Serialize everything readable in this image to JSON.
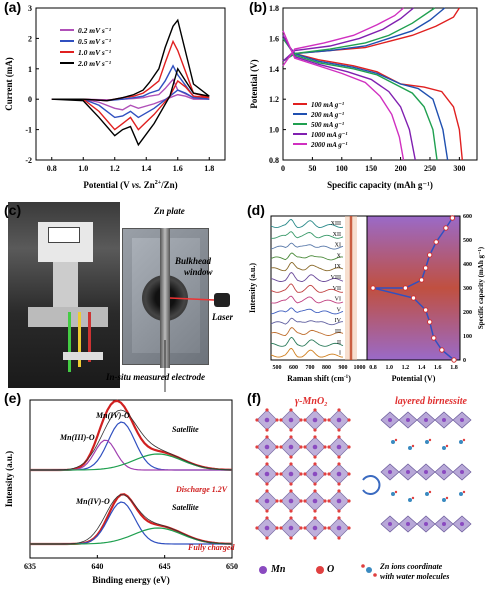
{
  "panel_labels": {
    "a": "(a)",
    "b": "(b)",
    "c": "(c)",
    "d": "(d)",
    "e": "(e)",
    "f": "(f)"
  },
  "panel_a": {
    "xlabel_main": "Potential (V ",
    "xlabel_vs": "vs.",
    "xlabel_rest": " Zn",
    "xlabel_sup": "2+",
    "xlabel_end": "/Zn)",
    "ylabel": "Current (mA)",
    "legend": [
      "0.2 mV s⁻¹",
      "0.5 mV s⁻¹",
      "1.0 mV s⁻¹",
      "2.0 mV s⁻¹"
    ],
    "colors": [
      "#b050b8",
      "#3050c0",
      "#e02020",
      "#000000"
    ]
  },
  "panel_b": {
    "xlabel": "Specific capacity (mAh g⁻¹)",
    "ylabel": "Potential (V)",
    "legend": [
      "100 mA g⁻¹",
      "200 mA g⁻¹",
      "500 mA g⁻¹",
      "1000 mA g⁻¹",
      "2000 mA g⁻¹"
    ],
    "colors": [
      "#e02020",
      "#2050b0",
      "#20a050",
      "#8020b0",
      "#d030c0"
    ]
  },
  "panel_c": {
    "zn_plate": "Zn plate",
    "bulkhead": "Bulkhead",
    "window": "window",
    "laser": "Laser",
    "electrode": "In-situ measured electrode"
  },
  "panel_d": {
    "xlabel_left": "Raman shift (cm",
    "xlabel_left_sup": "-1",
    "xlabel_left_end": ")",
    "xlabel_right": "Potential (V)",
    "ylabel_left": "Intensity (a.u.)",
    "ylabel_right": "Specific capacity (mAh g⁻¹)",
    "roman": [
      "XIII",
      "XII",
      "XI",
      "X",
      "IX",
      "VIII",
      "VII",
      "VI",
      "V",
      "IV",
      "III",
      "II",
      "I"
    ]
  },
  "panel_e": {
    "xlabel": "Binding energy (eV)",
    "ylabel": "Intensity (a.u.)",
    "top_labels": [
      "Mn(IV)-O",
      "Mn(III)-O",
      "Satellite"
    ],
    "top_state": "Discharge 1.2V",
    "bottom_labels": [
      "Mn(IV)-O",
      "Satellite"
    ],
    "bottom_state": "Fully charged"
  },
  "panel_f": {
    "title_left": "γ-MnO₂",
    "title_right": "layered birnessite",
    "legend_mn": "Mn",
    "legend_o": "O",
    "legend_zn1": "Zn ions coordinate",
    "legend_zn2": "with water molecules"
  },
  "chart_data": [
    {
      "type": "line",
      "title": "",
      "xlabel": "Potential (V vs. Zn2+/Zn)",
      "ylabel": "Current (mA)",
      "xlim": [
        0.7,
        1.9
      ],
      "ylim": [
        -2,
        3
      ],
      "x_ticks": [
        "0.8",
        "1.0",
        "1.2",
        "1.4",
        "1.6",
        "1.8"
      ],
      "y_ticks": [
        "-2",
        "-1",
        "0",
        "1",
        "2",
        "3"
      ],
      "series": [
        {
          "name": "0.2 mV s⁻¹",
          "x": [
            0.8,
            1.0,
            1.1,
            1.2,
            1.25,
            1.3,
            1.35,
            1.45,
            1.55,
            1.6,
            1.65,
            1.7,
            1.8,
            1.7,
            1.6,
            1.57,
            1.52,
            1.48,
            1.42,
            1.38,
            1.32,
            1.25,
            1.15,
            1.0,
            0.8
          ],
          "y": [
            0.0,
            0.0,
            -0.1,
            -0.3,
            -0.35,
            -0.2,
            -0.3,
            -0.15,
            0.05,
            0.15,
            0.1,
            0.0,
            0.0,
            0.05,
            0.3,
            0.65,
            0.35,
            0.15,
            0.1,
            0.05,
            0.02,
            0.0,
            -0.02,
            0.0,
            0.0
          ]
        },
        {
          "name": "0.5 mV s⁻¹",
          "x": [
            0.8,
            1.0,
            1.1,
            1.2,
            1.25,
            1.3,
            1.35,
            1.45,
            1.55,
            1.6,
            1.65,
            1.7,
            1.8,
            1.7,
            1.6,
            1.57,
            1.52,
            1.48,
            1.42,
            1.38,
            1.32,
            1.25,
            1.15,
            1.0,
            0.8
          ],
          "y": [
            0.0,
            0.0,
            -0.2,
            -0.6,
            -0.55,
            -0.4,
            -0.6,
            -0.3,
            0.1,
            0.3,
            0.2,
            0.05,
            0.0,
            0.1,
            0.8,
            1.1,
            0.6,
            0.3,
            0.2,
            0.1,
            0.05,
            0.0,
            -0.05,
            0.0,
            0.0
          ]
        },
        {
          "name": "1.0 mV s⁻¹",
          "x": [
            0.8,
            1.0,
            1.1,
            1.2,
            1.25,
            1.3,
            1.35,
            1.45,
            1.55,
            1.6,
            1.65,
            1.7,
            1.8,
            1.7,
            1.6,
            1.57,
            1.52,
            1.48,
            1.42,
            1.38,
            1.32,
            1.25,
            1.15,
            1.0,
            0.8
          ],
          "y": [
            0.0,
            0.0,
            -0.4,
            -1.0,
            -0.8,
            -0.6,
            -1.0,
            -0.5,
            0.1,
            0.6,
            0.4,
            0.1,
            0.05,
            0.2,
            1.6,
            1.9,
            1.2,
            0.6,
            0.35,
            0.2,
            0.1,
            0.05,
            -0.05,
            0.0,
            0.0
          ]
        },
        {
          "name": "2.0 mV s⁻¹",
          "x": [
            0.8,
            1.0,
            1.1,
            1.2,
            1.25,
            1.3,
            1.35,
            1.45,
            1.55,
            1.6,
            1.65,
            1.7,
            1.8,
            1.7,
            1.6,
            1.57,
            1.52,
            1.48,
            1.42,
            1.38,
            1.32,
            1.25,
            1.15,
            1.0,
            0.8
          ],
          "y": [
            0.0,
            -0.05,
            -0.6,
            -1.2,
            -1.0,
            -0.9,
            -1.5,
            -0.8,
            0.1,
            1.0,
            0.6,
            0.2,
            0.1,
            0.5,
            2.6,
            2.4,
            1.7,
            1.0,
            0.55,
            0.3,
            0.15,
            0.05,
            -0.05,
            0.0,
            0.0
          ]
        }
      ]
    },
    {
      "type": "line",
      "title": "",
      "xlabel": "Specific capacity (mAh g⁻¹)",
      "ylabel": "Potential (V)",
      "xlim": [
        0,
        330
      ],
      "ylim": [
        0.8,
        1.8
      ],
      "x_ticks": [
        "0",
        "50",
        "100",
        "150",
        "200",
        "250",
        "300"
      ],
      "y_ticks": [
        "0.8",
        "1.0",
        "1.2",
        "1.4",
        "1.6",
        "1.8"
      ],
      "series": [
        {
          "name": "100 mA g⁻¹",
          "discharge_x": [
            0,
            20,
            60,
            120,
            160,
            200,
            240,
            270,
            290,
            300,
            305
          ],
          "discharge_y": [
            1.6,
            1.5,
            1.46,
            1.42,
            1.38,
            1.3,
            1.28,
            1.25,
            1.15,
            1.0,
            0.8
          ],
          "charge_x": [
            0,
            20,
            80,
            140,
            180,
            220,
            260,
            290,
            300
          ],
          "charge_y": [
            1.45,
            1.5,
            1.52,
            1.54,
            1.58,
            1.62,
            1.68,
            1.74,
            1.8
          ]
        },
        {
          "name": "200 mA g⁻¹",
          "discharge_x": [
            0,
            20,
            60,
            120,
            160,
            200,
            230,
            255,
            272,
            280
          ],
          "discharge_y": [
            1.6,
            1.5,
            1.45,
            1.41,
            1.37,
            1.3,
            1.27,
            1.2,
            1.0,
            0.8
          ],
          "charge_x": [
            0,
            20,
            80,
            140,
            180,
            220,
            250,
            275
          ],
          "charge_y": [
            1.45,
            1.5,
            1.52,
            1.55,
            1.6,
            1.65,
            1.72,
            1.8
          ]
        },
        {
          "name": "500 mA g⁻¹",
          "discharge_x": [
            0,
            20,
            60,
            120,
            160,
            190,
            220,
            240,
            255,
            262
          ],
          "discharge_y": [
            1.6,
            1.49,
            1.44,
            1.4,
            1.36,
            1.3,
            1.24,
            1.15,
            1.0,
            0.8
          ],
          "charge_x": [
            0,
            20,
            80,
            140,
            180,
            220,
            258
          ],
          "charge_y": [
            1.45,
            1.5,
            1.53,
            1.57,
            1.62,
            1.7,
            1.8
          ]
        },
        {
          "name": "1000 mA g⁻¹",
          "discharge_x": [
            0,
            20,
            60,
            110,
            150,
            180,
            200,
            215,
            225
          ],
          "discharge_y": [
            1.62,
            1.48,
            1.43,
            1.38,
            1.33,
            1.25,
            1.15,
            1.0,
            0.8
          ],
          "charge_x": [
            0,
            20,
            80,
            130,
            170,
            200,
            222
          ],
          "charge_y": [
            1.45,
            1.52,
            1.55,
            1.6,
            1.66,
            1.73,
            1.8
          ]
        },
        {
          "name": "2000 mA g⁻¹",
          "discharge_x": [
            0,
            20,
            60,
            100,
            140,
            165,
            185,
            198,
            205
          ],
          "discharge_y": [
            1.65,
            1.47,
            1.42,
            1.37,
            1.31,
            1.22,
            1.1,
            0.95,
            0.8
          ],
          "charge_x": [
            0,
            20,
            70,
            120,
            160,
            190,
            205
          ],
          "charge_y": [
            1.42,
            1.53,
            1.57,
            1.62,
            1.69,
            1.75,
            1.8
          ]
        }
      ]
    },
    {
      "type": "line",
      "title": "",
      "xlabel": "Binding energy (eV)",
      "ylabel": "Intensity (a.u.)",
      "xlim": [
        635,
        650
      ],
      "x_ticks": [
        "635",
        "640",
        "645",
        "650"
      ],
      "series": []
    }
  ]
}
